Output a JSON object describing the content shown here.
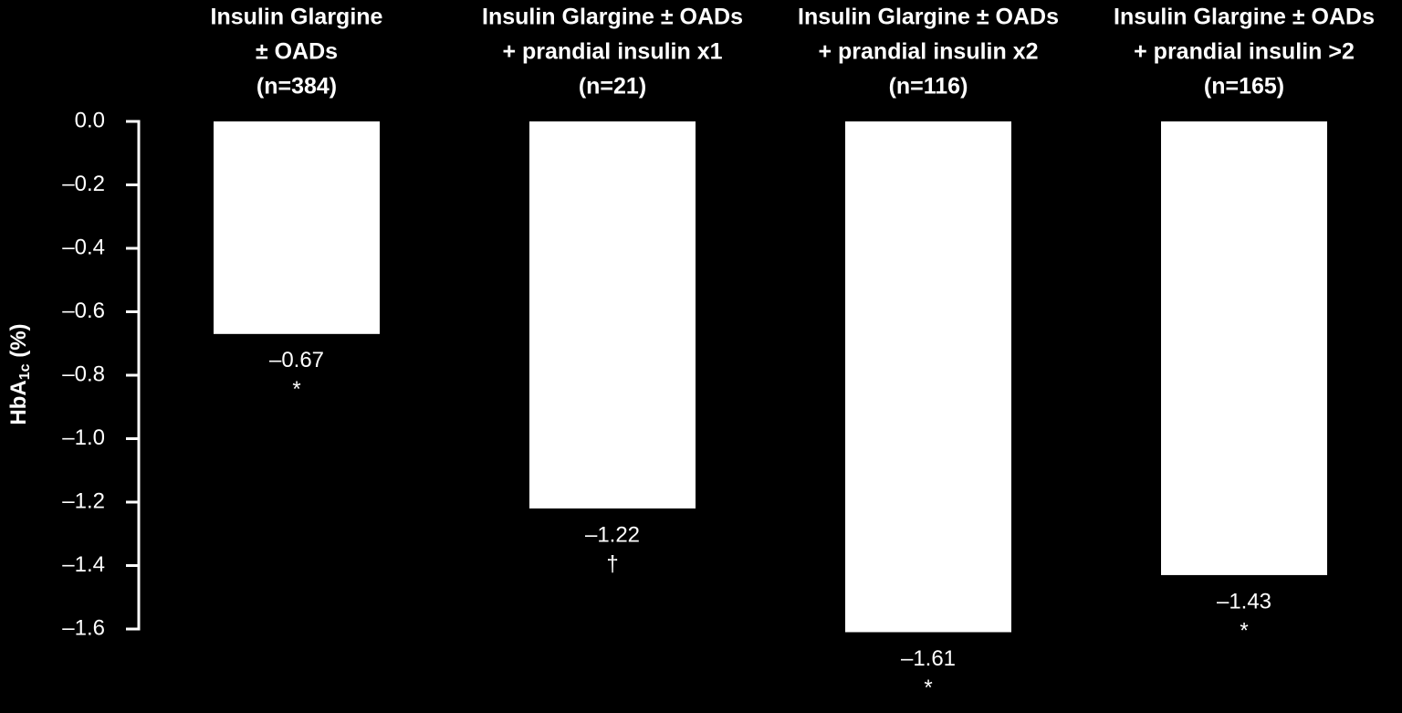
{
  "chart_data": {
    "type": "bar",
    "categories": [
      [
        "Insulin Glargine",
        "± OADs",
        "(n=384)"
      ],
      [
        "Insulin Glargine ± OADs",
        "+ prandial insulin x1",
        "(n=21)"
      ],
      [
        "Insulin Glargine ± OADs",
        "+ prandial insulin x2",
        "(n=116)"
      ],
      [
        "Insulin Glargine ± OADs",
        "+ prandial insulin >2",
        "(n=165)"
      ]
    ],
    "values": [
      -0.67,
      -1.22,
      -1.61,
      -1.43
    ],
    "value_labels": [
      "–0.67",
      "–1.22",
      "–1.61",
      "–1.43"
    ],
    "markers": [
      "*",
      "†",
      "*",
      "*"
    ],
    "color": "#ffffff",
    "ylabel": [
      "HbA",
      "1c",
      " (%)"
    ],
    "ylim": [
      -1.6,
      0
    ],
    "yticks": [
      {
        "value": 0,
        "label": "0.0"
      },
      {
        "value": -0.2,
        "label": "–0.2"
      },
      {
        "value": -0.4,
        "label": "–0.4"
      },
      {
        "value": -0.6,
        "label": "–0.6"
      },
      {
        "value": -0.8,
        "label": "–0.8"
      },
      {
        "value": -1.0,
        "label": "–1.0"
      },
      {
        "value": -1.2,
        "label": "–1.2"
      },
      {
        "value": -1.4,
        "label": "–1.4"
      },
      {
        "value": -1.6,
        "label": "–1.6"
      }
    ]
  }
}
